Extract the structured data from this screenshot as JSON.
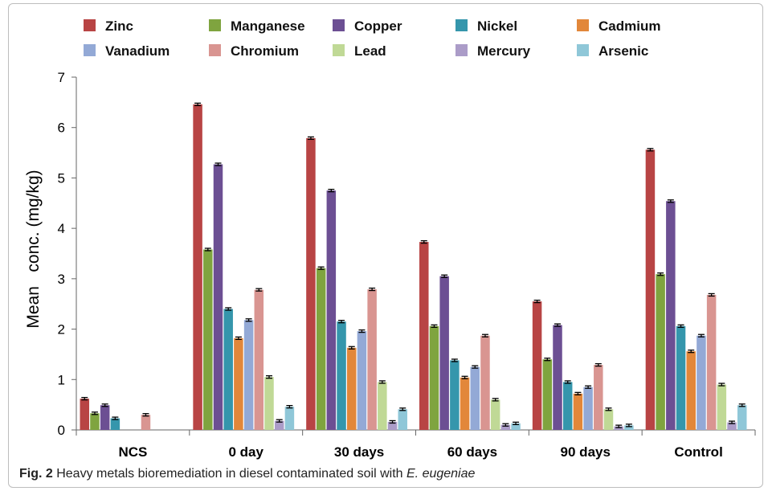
{
  "caption": {
    "label": "Fig. 2",
    "text": " Heavy metals bioremediation in diesel contaminated soil with ",
    "species": "E. eugeniae"
  },
  "colors": {
    "Zinc": "#b84444",
    "Manganese": "#7fa43f",
    "Copper": "#6c4f93",
    "Nickel": "#3596ac",
    "Cadmium": "#e2873a",
    "Vanadium": "#93a9d6",
    "Chromium": "#d99591",
    "Lead": "#c0d996",
    "Mercury": "#ab9cc8",
    "Arsenic": "#8fc7d8"
  },
  "chart_data": {
    "type": "bar",
    "title": "",
    "xlabel": "",
    "ylabel": "Mean   conc. (mg/kg)",
    "ylim": [
      0,
      7
    ],
    "yticks": [
      "0",
      "1",
      "2",
      "3",
      "4",
      "5",
      "6",
      "7"
    ],
    "grid": false,
    "legend_position": "top",
    "error_bars": true,
    "categories": [
      "NCS",
      "0 day",
      "30 days",
      "60 days",
      "90 days",
      "Control"
    ],
    "series": [
      {
        "name": "Zinc",
        "values": [
          0.62,
          6.46,
          5.79,
          3.73,
          2.55,
          5.56
        ]
      },
      {
        "name": "Manganese",
        "values": [
          0.33,
          3.58,
          3.21,
          2.06,
          1.4,
          3.09
        ]
      },
      {
        "name": "Copper",
        "values": [
          0.49,
          5.27,
          4.75,
          3.05,
          2.08,
          4.54
        ]
      },
      {
        "name": "Nickel",
        "values": [
          0.23,
          2.4,
          2.15,
          1.38,
          0.95,
          2.06
        ]
      },
      {
        "name": "Cadmium",
        "values": [
          0.0,
          1.82,
          1.63,
          1.04,
          0.72,
          1.56
        ]
      },
      {
        "name": "Vanadium",
        "values": [
          0.0,
          2.18,
          1.96,
          1.25,
          0.85,
          1.87
        ]
      },
      {
        "name": "Chromium",
        "values": [
          0.3,
          2.78,
          2.79,
          1.87,
          1.29,
          2.68
        ]
      },
      {
        "name": "Lead",
        "values": [
          0.0,
          1.05,
          0.95,
          0.6,
          0.41,
          0.9
        ]
      },
      {
        "name": "Mercury",
        "values": [
          0.0,
          0.18,
          0.16,
          0.1,
          0.07,
          0.15
        ]
      },
      {
        "name": "Arsenic",
        "values": [
          0.0,
          0.46,
          0.41,
          0.13,
          0.09,
          0.49
        ]
      }
    ]
  }
}
